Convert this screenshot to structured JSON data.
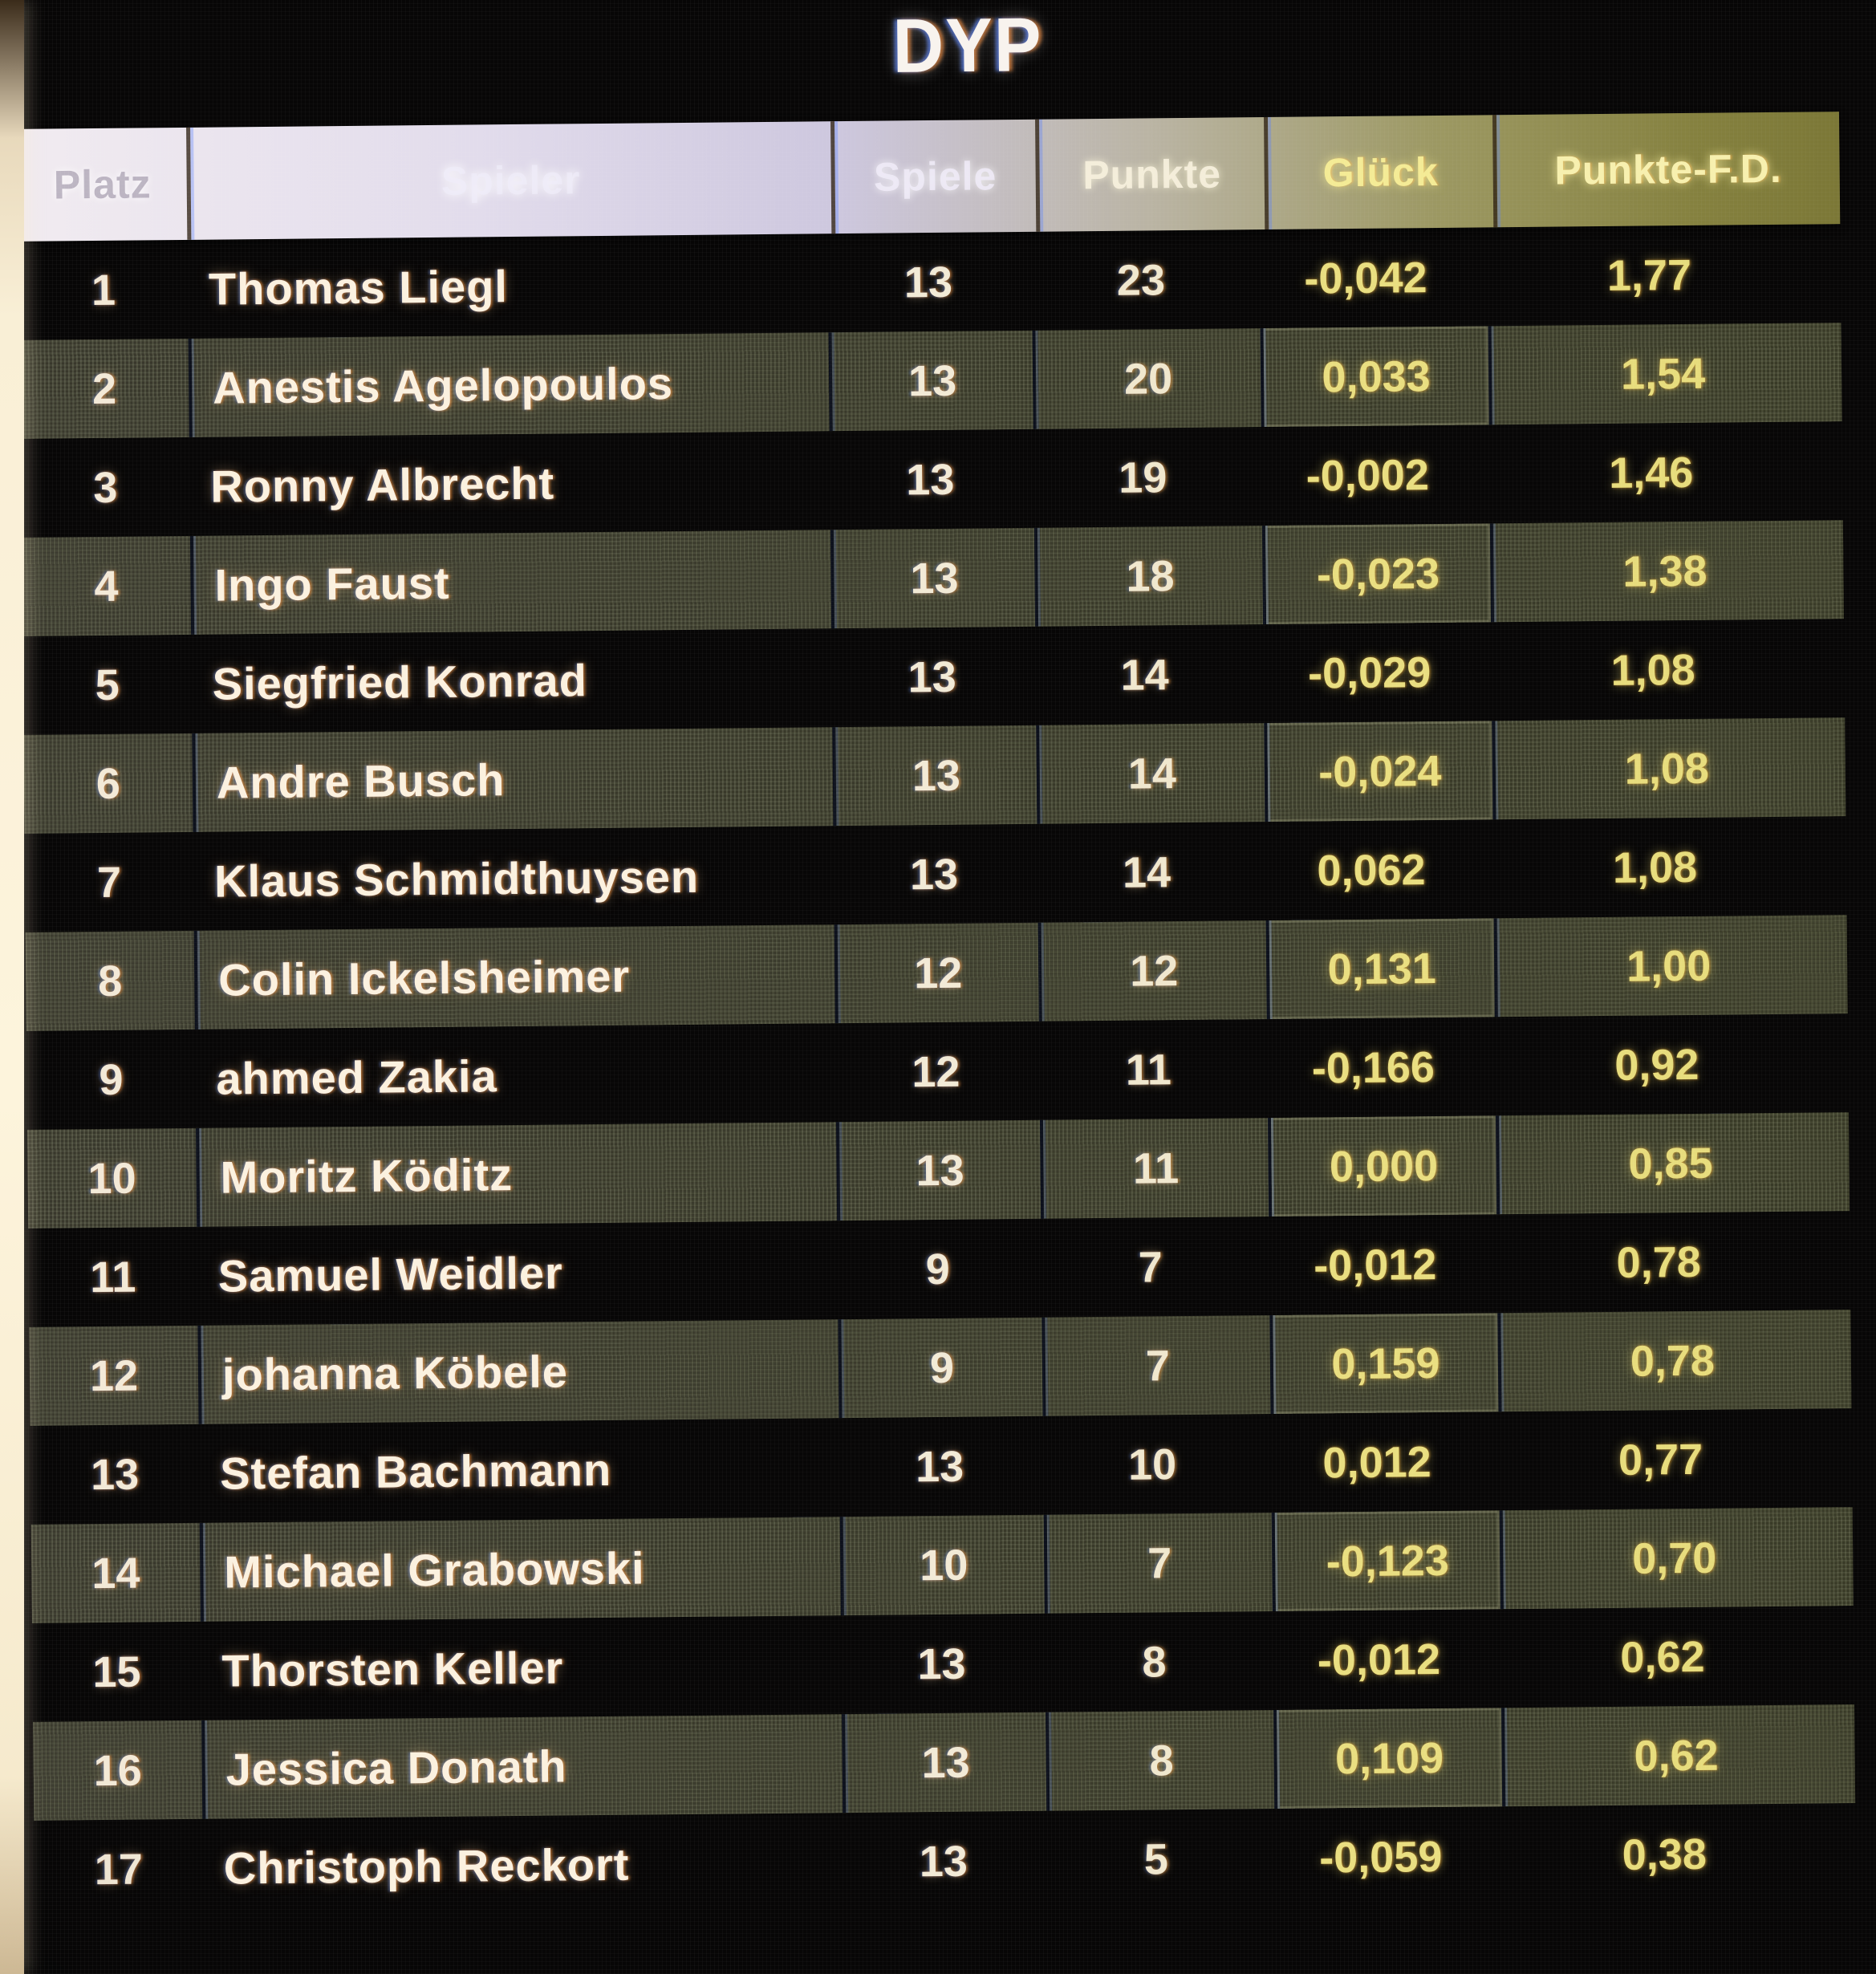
{
  "title": "DYP",
  "table": {
    "columns": [
      {
        "key": "platz",
        "label": "Platz"
      },
      {
        "key": "spieler",
        "label": "Spieler"
      },
      {
        "key": "spiele",
        "label": "Spiele"
      },
      {
        "key": "punkte",
        "label": "Punkte"
      },
      {
        "key": "glueck",
        "label": "Glück"
      },
      {
        "key": "punkte_fd",
        "label": "Punkte-F.D."
      }
    ],
    "rows": [
      {
        "platz": "1",
        "spieler": "Thomas Liegl",
        "spiele": "13",
        "punkte": "23",
        "glueck": "-0,042",
        "punkte_fd": "1,77"
      },
      {
        "platz": "2",
        "spieler": "Anestis Agelopoulos",
        "spiele": "13",
        "punkte": "20",
        "glueck": "0,033",
        "punkte_fd": "1,54"
      },
      {
        "platz": "3",
        "spieler": "Ronny Albrecht",
        "spiele": "13",
        "punkte": "19",
        "glueck": "-0,002",
        "punkte_fd": "1,46"
      },
      {
        "platz": "4",
        "spieler": "Ingo Faust",
        "spiele": "13",
        "punkte": "18",
        "glueck": "-0,023",
        "punkte_fd": "1,38"
      },
      {
        "platz": "5",
        "spieler": "Siegfried Konrad",
        "spiele": "13",
        "punkte": "14",
        "glueck": "-0,029",
        "punkte_fd": "1,08"
      },
      {
        "platz": "6",
        "spieler": "Andre Busch",
        "spiele": "13",
        "punkte": "14",
        "glueck": "-0,024",
        "punkte_fd": "1,08"
      },
      {
        "platz": "7",
        "spieler": "Klaus Schmidthuysen",
        "spiele": "13",
        "punkte": "14",
        "glueck": "0,062",
        "punkte_fd": "1,08"
      },
      {
        "platz": "8",
        "spieler": "Colin Ickelsheimer",
        "spiele": "12",
        "punkte": "12",
        "glueck": "0,131",
        "punkte_fd": "1,00"
      },
      {
        "platz": "9",
        "spieler": "ahmed Zakia",
        "spiele": "12",
        "punkte": "11",
        "glueck": "-0,166",
        "punkte_fd": "0,92"
      },
      {
        "platz": "10",
        "spieler": "Moritz Köditz",
        "spiele": "13",
        "punkte": "11",
        "glueck": "0,000",
        "punkte_fd": "0,85"
      },
      {
        "platz": "11",
        "spieler": "Samuel Weidler",
        "spiele": "9",
        "punkte": "7",
        "glueck": "-0,012",
        "punkte_fd": "0,78"
      },
      {
        "platz": "12",
        "spieler": "johanna Köbele",
        "spiele": "9",
        "punkte": "7",
        "glueck": "0,159",
        "punkte_fd": "0,78"
      },
      {
        "platz": "13",
        "spieler": "Stefan Bachmann",
        "spiele": "13",
        "punkte": "10",
        "glueck": "0,012",
        "punkte_fd": "0,77"
      },
      {
        "platz": "14",
        "spieler": "Michael Grabowski",
        "spiele": "10",
        "punkte": "7",
        "glueck": "-0,123",
        "punkte_fd": "0,70"
      },
      {
        "platz": "15",
        "spieler": "Thorsten Keller",
        "spiele": "13",
        "punkte": "8",
        "glueck": "-0,012",
        "punkte_fd": "0,62"
      },
      {
        "platz": "16",
        "spieler": "Jessica Donath",
        "spiele": "13",
        "punkte": "8",
        "glueck": "0,109",
        "punkte_fd": "0,62"
      },
      {
        "platz": "17",
        "spieler": "Christoph Reckort",
        "spiele": "13",
        "punkte": "5",
        "glueck": "-0,059",
        "punkte_fd": "0,38"
      }
    ]
  },
  "colors": {
    "background": "#070606",
    "row_highlight": "#2e2e22",
    "name_text": "#fbf1df",
    "value_text": "#f0e7ce",
    "value_yellow": "#e8dd7d",
    "header_left": "#f1ebf0",
    "header_right": "#7b7736",
    "edge_glow": "#fdf4dc"
  }
}
